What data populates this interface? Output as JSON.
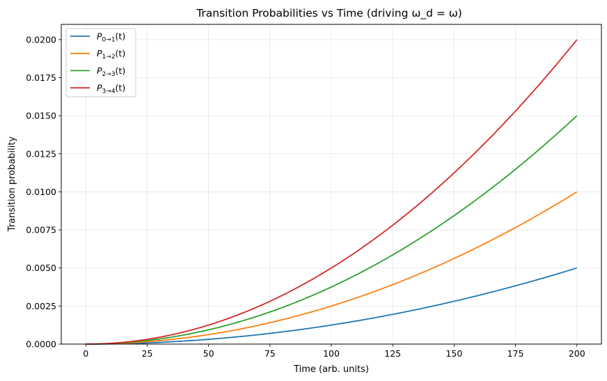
{
  "chart_data": {
    "type": "line",
    "title": "Transition Probabilities vs Time (driving ω_d = ω)",
    "xlabel": "Time (arb. units)",
    "ylabel": "Transition probability",
    "xlim": [
      -10,
      210
    ],
    "ylim": [
      0,
      0.021
    ],
    "xticks": [
      0,
      25,
      50,
      75,
      100,
      125,
      150,
      175,
      200
    ],
    "yticks": [
      0.0,
      0.0025,
      0.005,
      0.0075,
      0.01,
      0.0125,
      0.015,
      0.0175,
      0.02
    ],
    "xtick_labels": [
      "0",
      "25",
      "50",
      "75",
      "100",
      "125",
      "150",
      "175",
      "200"
    ],
    "ytick_labels": [
      "0.0000",
      "0.0025",
      "0.0050",
      "0.0075",
      "0.0100",
      "0.0125",
      "0.0150",
      "0.0175",
      "0.0200"
    ],
    "grid": true,
    "legend_position": "top-left",
    "x": [
      0,
      25,
      50,
      75,
      100,
      125,
      150,
      175,
      200
    ],
    "series": [
      {
        "name": "P_{0→1}(t)",
        "label_main": "P",
        "label_sub": "0→1",
        "label_suffix": "(t)",
        "color": "#1f77b4",
        "values": [
          0.0,
          7.8e-05,
          0.0003125,
          0.000703,
          0.00125,
          0.00195,
          0.00281,
          0.00383,
          0.005
        ]
      },
      {
        "name": "P_{1→2}(t)",
        "label_main": "P",
        "label_sub": "1→2",
        "label_suffix": "(t)",
        "color": "#ff7f0e",
        "values": [
          0.0,
          0.000156,
          0.000625,
          0.001406,
          0.0025,
          0.0039,
          0.005625,
          0.00766,
          0.01
        ]
      },
      {
        "name": "P_{2→3}(t)",
        "label_main": "P",
        "label_sub": "2→3",
        "label_suffix": "(t)",
        "color": "#2ca02c",
        "values": [
          0.0,
          0.000234,
          0.0009375,
          0.00211,
          0.00375,
          0.00586,
          0.00844,
          0.01148,
          0.015
        ]
      },
      {
        "name": "P_{3→4}(t)",
        "label_main": "P",
        "label_sub": "3→4",
        "label_suffix": "(t)",
        "color": "#d62728",
        "values": [
          0.0,
          0.0003125,
          0.00125,
          0.00281,
          0.005,
          0.0078,
          0.01125,
          0.0153,
          0.02
        ]
      }
    ]
  }
}
